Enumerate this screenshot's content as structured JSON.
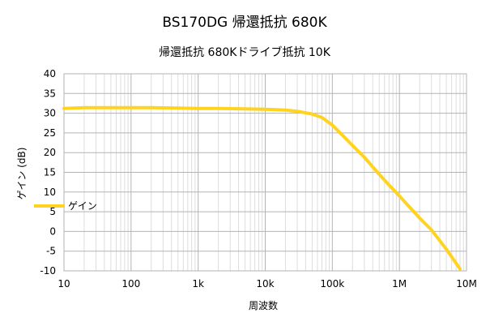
{
  "chart_data": {
    "type": "line",
    "title": "BS170DG 帰還抵抗 680K",
    "subtitle": "帰還抵抗 680Kドライブ抵抗 10K",
    "xlabel": "周波数",
    "ylabel": "ゲイン (dB)",
    "xscale": "log",
    "xlim": [
      10,
      10000000
    ],
    "ylim": [
      -10,
      40
    ],
    "x_ticks": [
      10,
      100,
      1000,
      10000,
      100000,
      1000000,
      10000000
    ],
    "x_tick_labels": [
      "10",
      "100",
      "1k",
      "10k",
      "100k",
      "1M",
      "10M"
    ],
    "y_ticks": [
      -10,
      -5,
      0,
      5,
      10,
      15,
      20,
      25,
      30,
      35,
      40
    ],
    "y_tick_labels": [
      "-10",
      "-5",
      "0",
      "5",
      "10",
      "15",
      "20",
      "25",
      "30",
      "35",
      "40"
    ],
    "grid": true,
    "legend": "left",
    "series": [
      {
        "name": "ゲイン",
        "color": "#ffd320",
        "x": [
          10,
          20,
          50,
          100,
          200,
          500,
          1000,
          2000,
          5000,
          10000,
          20000,
          30000,
          50000,
          70000,
          100000,
          150000,
          200000,
          300000,
          500000,
          700000,
          1000000,
          2000000,
          3000000,
          5000000,
          8000000
        ],
        "y": [
          31.2,
          31.4,
          31.4,
          31.4,
          31.4,
          31.3,
          31.2,
          31.2,
          31.1,
          31.0,
          30.8,
          30.5,
          29.8,
          28.9,
          27.0,
          24.0,
          21.8,
          18.8,
          14.5,
          11.8,
          9.0,
          3.4,
          0.4,
          -4.5,
          -9.5
        ]
      }
    ]
  }
}
